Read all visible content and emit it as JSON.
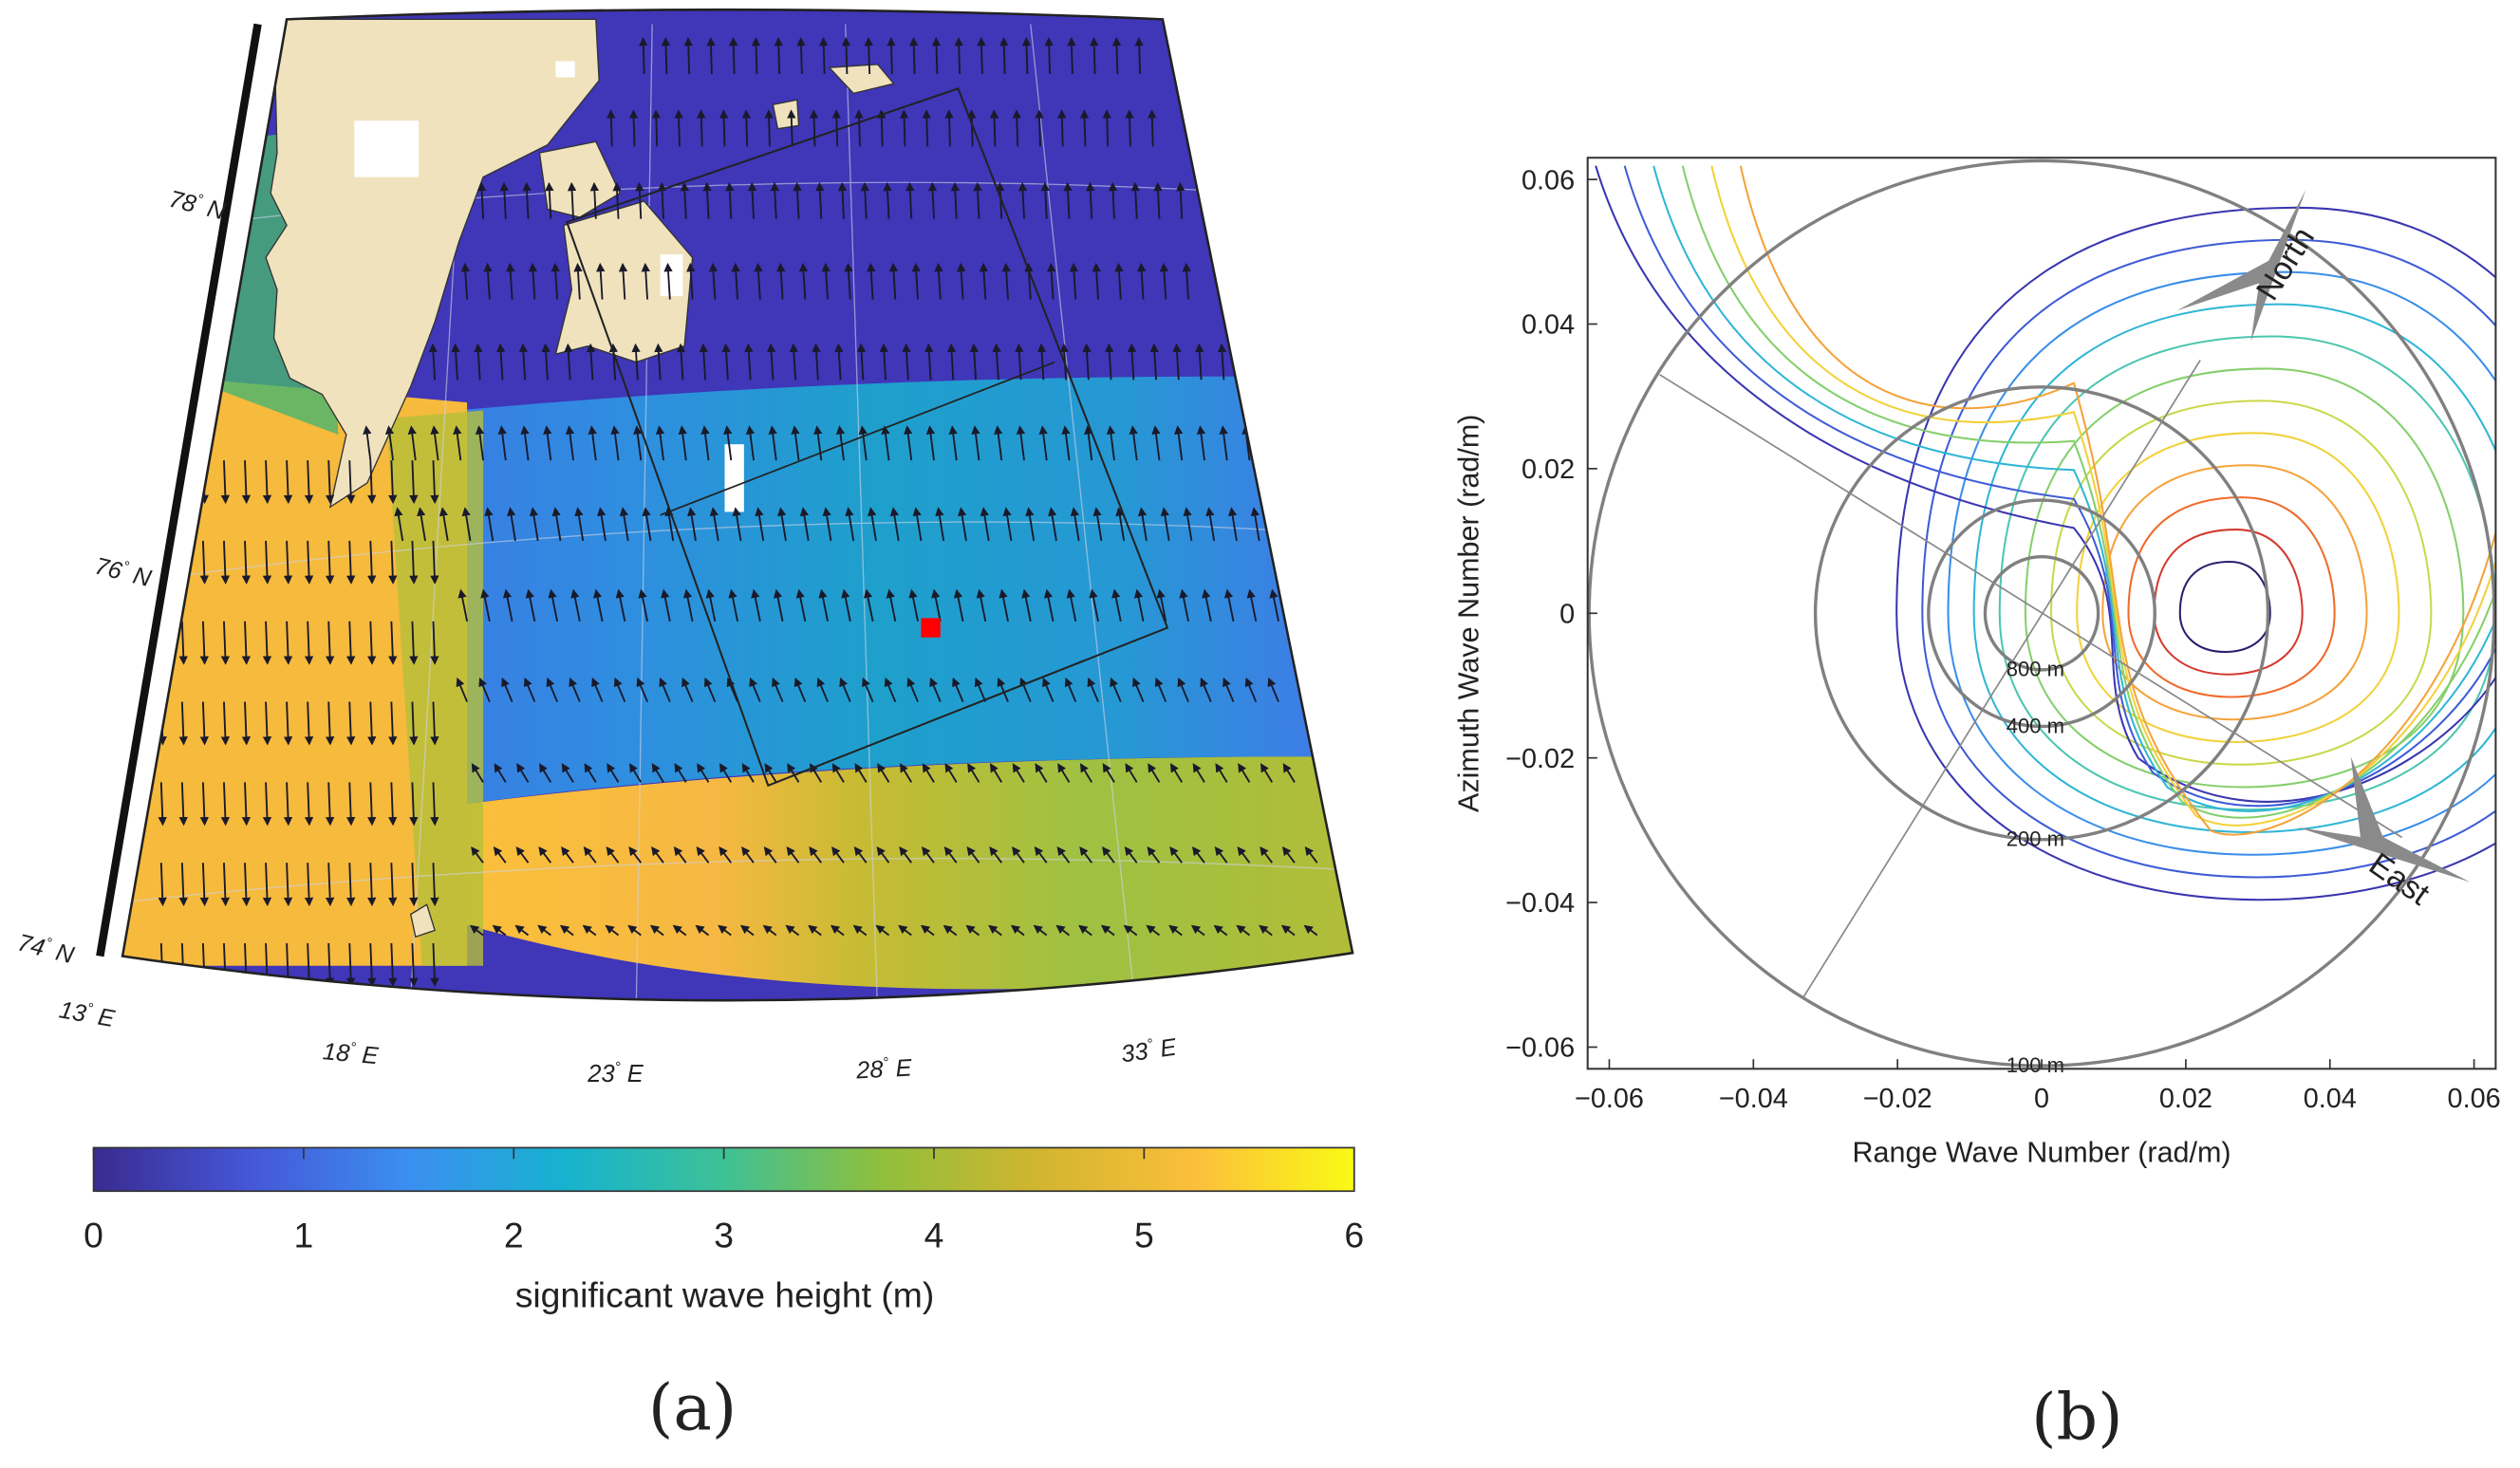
{
  "panel_a": {
    "caption": "(a)",
    "lat_labels": [
      {
        "deg": "78",
        "hem": "N"
      },
      {
        "deg": "76",
        "hem": "N"
      },
      {
        "deg": "74",
        "hem": "N"
      }
    ],
    "lon_labels": [
      {
        "deg": "13",
        "hem": "E"
      },
      {
        "deg": "18",
        "hem": "E"
      },
      {
        "deg": "23",
        "hem": "E"
      },
      {
        "deg": "28",
        "hem": "E"
      },
      {
        "deg": "33",
        "hem": "E"
      }
    ],
    "colorbar": {
      "label": "significant wave height (m)",
      "ticks": [
        "0",
        "1",
        "2",
        "3",
        "4",
        "5",
        "6"
      ],
      "colormap": [
        "#3a2b8f",
        "#4557d8",
        "#3b8ff0",
        "#16b3cf",
        "#3ec195",
        "#8fbf3c",
        "#d2b52f",
        "#fbbf3b",
        "#f9fa14"
      ]
    },
    "land_color": "#efe2bd",
    "marker_color": "#ff0000"
  },
  "chart_data": {
    "type": "contour",
    "caption": "(b)",
    "xlabel": "Range Wave Number (rad/m)",
    "ylabel": "Azimuth Wave Number (rad/m)",
    "xlim": [
      -0.063,
      0.063
    ],
    "ylim": [
      -0.063,
      0.063
    ],
    "xticks": [
      "−0.06",
      "−0.04",
      "−0.02",
      "0",
      "0.02",
      "0.04",
      "0.06"
    ],
    "yticks": [
      "0.06",
      "0.04",
      "0.02",
      "0",
      "−0.02",
      "−0.04",
      "−0.06"
    ],
    "wavelength_circles": [
      {
        "label": "800 m",
        "radius": 0.00785
      },
      {
        "label": "400 m",
        "radius": 0.0157
      },
      {
        "label": "200 m",
        "radius": 0.0314
      },
      {
        "label": "100 m",
        "radius": 0.0628
      }
    ],
    "spectral_peak": {
      "x": 0.025,
      "y": 0.0
    },
    "direction_arrows": [
      {
        "label": "North"
      },
      {
        "label": "East"
      }
    ]
  }
}
